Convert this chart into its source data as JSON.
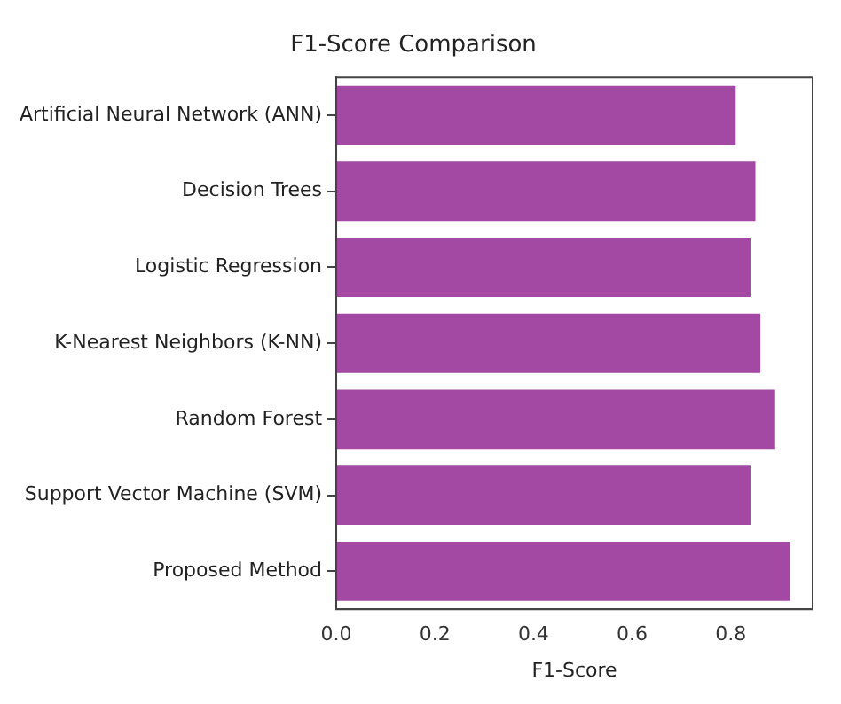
{
  "chart_data": {
    "type": "bar",
    "orientation": "horizontal",
    "title": "F1-Score Comparison",
    "xlabel": "F1-Score",
    "categories": [
      "Artificial Neural Network (ANN)",
      "Decision Trees",
      "Logistic Regression",
      "K-Nearest Neighbors (K-NN)",
      "Random Forest",
      "Support Vector Machine (SVM)",
      "Proposed Method"
    ],
    "values": [
      0.81,
      0.85,
      0.84,
      0.86,
      0.89,
      0.84,
      0.92
    ],
    "color": "#a349a4",
    "xlim": [
      0,
      0.966
    ],
    "xticks": [
      {
        "value": 0,
        "label": "0.0"
      },
      {
        "value": 0.2,
        "label": "0.2"
      },
      {
        "value": 0.4,
        "label": "0.4"
      },
      {
        "value": 0.6,
        "label": "0.6"
      },
      {
        "value": 0.8,
        "label": "0.8"
      }
    ],
    "grid": false,
    "legend": false
  }
}
